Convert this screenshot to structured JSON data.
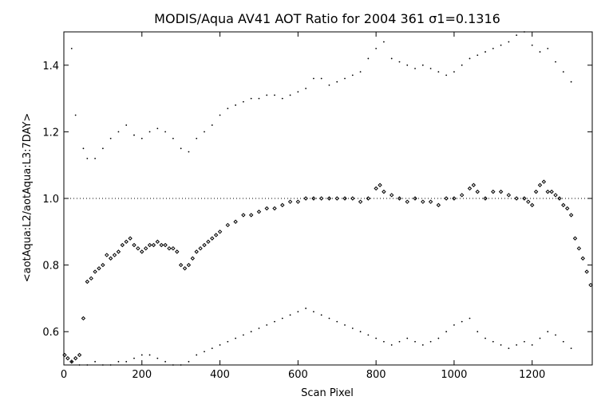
{
  "chart_data": {
    "type": "scatter",
    "title": "MODIS/Aqua AV41 AOT Ratio for 2004 361 σ1=0.1316",
    "xlabel": "Scan Pixel",
    "ylabel": "<aotAqua:L2/aotAqua:L3:7DAY>",
    "xlim": [
      0,
      1354
    ],
    "ylim": [
      0.5,
      1.5
    ],
    "x_ticks": [
      0,
      200,
      400,
      600,
      800,
      1000,
      1200
    ],
    "y_ticks": [
      0.6,
      0.8,
      1.0,
      1.2,
      1.4
    ],
    "x_tick_labels": [
      "0",
      "200",
      "400",
      "600",
      "800",
      "1000",
      "1200"
    ],
    "y_tick_labels": [
      "0.6",
      "0.8",
      "1.0",
      "1.2",
      "1.4"
    ],
    "reference_line": 1.0,
    "grid": false,
    "series": [
      {
        "role": "mean",
        "marker": "diamond",
        "x": [
          2,
          10,
          20,
          30,
          40,
          50,
          60,
          70,
          80,
          90,
          100,
          110,
          120,
          130,
          140,
          150,
          160,
          170,
          180,
          190,
          200,
          210,
          220,
          230,
          240,
          250,
          260,
          270,
          280,
          290,
          300,
          310,
          320,
          330,
          340,
          350,
          360,
          370,
          380,
          390,
          400,
          420,
          440,
          460,
          480,
          500,
          520,
          540,
          560,
          580,
          600,
          620,
          640,
          660,
          680,
          700,
          720,
          740,
          760,
          780,
          800,
          810,
          820,
          840,
          860,
          880,
          900,
          920,
          940,
          960,
          980,
          1000,
          1020,
          1040,
          1050,
          1060,
          1080,
          1100,
          1120,
          1140,
          1160,
          1180,
          1190,
          1200,
          1210,
          1220,
          1230,
          1240,
          1250,
          1260,
          1270,
          1280,
          1290,
          1300,
          1310,
          1320,
          1330,
          1340,
          1350
        ],
        "y": [
          0.53,
          0.52,
          0.51,
          0.52,
          0.53,
          0.64,
          0.75,
          0.76,
          0.78,
          0.79,
          0.8,
          0.83,
          0.82,
          0.83,
          0.84,
          0.86,
          0.87,
          0.88,
          0.86,
          0.85,
          0.84,
          0.85,
          0.86,
          0.86,
          0.87,
          0.86,
          0.86,
          0.85,
          0.85,
          0.84,
          0.8,
          0.79,
          0.8,
          0.82,
          0.84,
          0.85,
          0.86,
          0.87,
          0.88,
          0.89,
          0.9,
          0.92,
          0.93,
          0.95,
          0.95,
          0.96,
          0.97,
          0.97,
          0.98,
          0.99,
          0.99,
          1.0,
          1.0,
          1.0,
          1.0,
          1.0,
          1.0,
          1.0,
          0.99,
          1.0,
          1.03,
          1.04,
          1.02,
          1.01,
          1.0,
          0.99,
          1.0,
          0.99,
          0.99,
          0.98,
          1.0,
          1.0,
          1.01,
          1.03,
          1.04,
          1.02,
          1.0,
          1.02,
          1.02,
          1.01,
          1.0,
          1.0,
          0.99,
          0.98,
          1.02,
          1.04,
          1.05,
          1.02,
          1.02,
          1.01,
          1.0,
          0.98,
          0.97,
          0.95,
          0.88,
          0.85,
          0.82,
          0.78,
          0.74
        ]
      },
      {
        "role": "upper",
        "marker": "dot",
        "x": [
          20,
          30,
          50,
          60,
          80,
          100,
          120,
          140,
          160,
          180,
          200,
          220,
          240,
          260,
          280,
          300,
          320,
          340,
          360,
          380,
          400,
          420,
          440,
          460,
          480,
          500,
          520,
          540,
          560,
          580,
          600,
          620,
          640,
          660,
          680,
          700,
          720,
          740,
          760,
          780,
          800,
          820,
          840,
          860,
          880,
          900,
          920,
          940,
          960,
          980,
          1000,
          1020,
          1040,
          1060,
          1080,
          1100,
          1120,
          1140,
          1160,
          1180,
          1200,
          1220,
          1240,
          1260,
          1280,
          1300
        ],
        "y": [
          1.45,
          1.25,
          1.15,
          1.12,
          1.12,
          1.15,
          1.18,
          1.2,
          1.22,
          1.19,
          1.18,
          1.2,
          1.21,
          1.2,
          1.18,
          1.15,
          1.14,
          1.18,
          1.2,
          1.22,
          1.25,
          1.27,
          1.28,
          1.29,
          1.3,
          1.3,
          1.31,
          1.31,
          1.3,
          1.31,
          1.32,
          1.33,
          1.36,
          1.36,
          1.34,
          1.35,
          1.36,
          1.37,
          1.38,
          1.42,
          1.45,
          1.47,
          1.42,
          1.41,
          1.4,
          1.39,
          1.4,
          1.39,
          1.38,
          1.37,
          1.38,
          1.4,
          1.42,
          1.43,
          1.44,
          1.45,
          1.46,
          1.47,
          1.49,
          1.5,
          1.46,
          1.44,
          1.45,
          1.41,
          1.38,
          1.35
        ]
      },
      {
        "role": "lower",
        "marker": "dot",
        "x": [
          20,
          40,
          60,
          80,
          100,
          120,
          140,
          160,
          180,
          200,
          220,
          240,
          260,
          280,
          300,
          320,
          340,
          360,
          380,
          400,
          420,
          440,
          460,
          480,
          500,
          520,
          540,
          560,
          580,
          600,
          620,
          640,
          660,
          680,
          700,
          720,
          740,
          760,
          780,
          800,
          820,
          840,
          860,
          880,
          900,
          920,
          940,
          960,
          980,
          1000,
          1020,
          1040,
          1060,
          1080,
          1100,
          1120,
          1140,
          1160,
          1180,
          1200,
          1220,
          1240,
          1260,
          1280,
          1300
        ],
        "y": [
          0.51,
          0.5,
          0.5,
          0.51,
          0.5,
          0.5,
          0.51,
          0.51,
          0.52,
          0.53,
          0.53,
          0.52,
          0.51,
          0.5,
          0.5,
          0.51,
          0.53,
          0.54,
          0.55,
          0.56,
          0.57,
          0.58,
          0.59,
          0.6,
          0.61,
          0.62,
          0.63,
          0.64,
          0.65,
          0.66,
          0.67,
          0.66,
          0.65,
          0.64,
          0.63,
          0.62,
          0.61,
          0.6,
          0.59,
          0.58,
          0.57,
          0.56,
          0.57,
          0.58,
          0.57,
          0.56,
          0.57,
          0.58,
          0.6,
          0.62,
          0.63,
          0.64,
          0.6,
          0.58,
          0.57,
          0.56,
          0.55,
          0.56,
          0.57,
          0.56,
          0.58,
          0.6,
          0.59,
          0.57,
          0.55
        ]
      }
    ]
  }
}
